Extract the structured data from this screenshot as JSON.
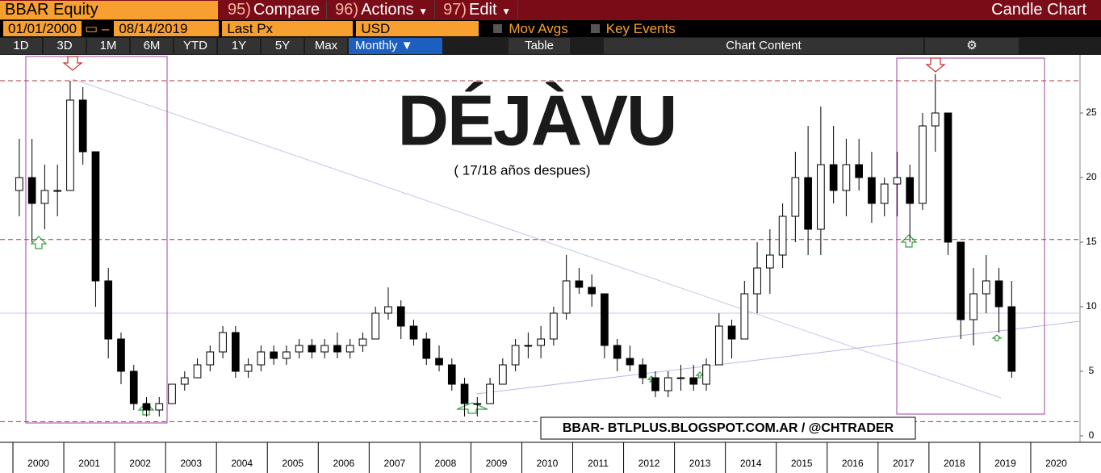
{
  "header": {
    "ticker": "BBAR Equity",
    "menu": [
      {
        "num": "95)",
        "label": "Compare"
      },
      {
        "num": "96)",
        "label": "Actions"
      },
      {
        "num": "97)",
        "label": "Edit"
      }
    ],
    "chart_kind": "Candle Chart",
    "start_date": "01/01/2000",
    "end_date": "08/14/2019",
    "field": "Last Px",
    "currency": "USD",
    "toggles": [
      "Mov Avgs",
      "Key Events"
    ],
    "ranges": [
      "1D",
      "3D",
      "1M",
      "6M",
      "YTD",
      "1Y",
      "5Y",
      "Max"
    ],
    "period": "Monthly",
    "table": "Table",
    "content": "Chart Content"
  },
  "chart_data": {
    "type": "candlestick",
    "title": "DÉJÀVU",
    "subtitle": "( 17/18 años despues)",
    "annotation": "BBAR- BTLPLUS.BLOGSPOT.COM.AR / @CHTRADER",
    "xlim": [
      2000,
      2021
    ],
    "xticks": [
      2000,
      2001,
      2002,
      2003,
      2004,
      2005,
      2006,
      2007,
      2008,
      2009,
      2010,
      2011,
      2012,
      2013,
      2014,
      2015,
      2016,
      2017,
      2018,
      2019,
      2020
    ],
    "ylim": [
      -0.5,
      29.5
    ],
    "yticks": [
      0,
      5,
      10,
      15,
      20,
      25
    ],
    "hlines": [
      27.5,
      15.2,
      1.1
    ],
    "hline_color": "#b0303a",
    "x": [
      2000.125,
      2000.375,
      2000.625,
      2000.875,
      2001.125,
      2001.375,
      2001.625,
      2001.875,
      2002.125,
      2002.375,
      2002.625,
      2002.875,
      2003.125,
      2003.375,
      2003.625,
      2003.875,
      2004.125,
      2004.375,
      2004.625,
      2004.875,
      2005.125,
      2005.375,
      2005.625,
      2005.875,
      2006.125,
      2006.375,
      2006.625,
      2006.875,
      2007.125,
      2007.375,
      2007.625,
      2007.875,
      2008.125,
      2008.375,
      2008.625,
      2008.875,
      2009.125,
      2009.375,
      2009.625,
      2009.875,
      2010.125,
      2010.375,
      2010.625,
      2010.875,
      2011.125,
      2011.375,
      2011.625,
      2011.875,
      2012.125,
      2012.375,
      2012.625,
      2012.875,
      2013.125,
      2013.375,
      2013.625,
      2013.875,
      2014.125,
      2014.375,
      2014.625,
      2014.875,
      2015.125,
      2015.375,
      2015.625,
      2015.875,
      2016.125,
      2016.375,
      2016.625,
      2016.875,
      2017.125,
      2017.375,
      2017.625,
      2017.875,
      2018.125,
      2018.375,
      2018.625,
      2018.875,
      2019.125,
      2019.375,
      2019.625
    ],
    "open": [
      19,
      20,
      18,
      19,
      19,
      26,
      22,
      12,
      7.5,
      5,
      2.5,
      2,
      2.5,
      4,
      4.5,
      5.5,
      6.5,
      8,
      5,
      5.5,
      6.5,
      6,
      6.5,
      7,
      6.5,
      7,
      6.5,
      7,
      7.5,
      9.5,
      10,
      8.5,
      7.5,
      6,
      5.5,
      4,
      2.5,
      2.5,
      4,
      5.5,
      7,
      7,
      7.5,
      9.5,
      12,
      11.5,
      11,
      7,
      6,
      5.5,
      4.5,
      3.5,
      4.5,
      4.5,
      4,
      5.5,
      8.5,
      7.5,
      11,
      13,
      14,
      17,
      20,
      16,
      21,
      19,
      21,
      20,
      18,
      19.5,
      20,
      18,
      24,
      25,
      15,
      9,
      11,
      12,
      10
    ],
    "high": [
      23,
      23,
      21,
      21,
      27.5,
      27,
      22,
      13,
      8,
      5.5,
      3,
      3,
      4,
      5,
      6,
      7,
      8.5,
      8.5,
      6,
      7,
      7,
      7,
      7.5,
      7.5,
      7.5,
      8,
      7.5,
      8,
      10,
      11.5,
      10.5,
      9,
      8,
      7,
      6,
      4.5,
      3,
      4.5,
      6,
      7.5,
      8,
      8.5,
      10,
      14,
      13,
      12.5,
      11,
      7.5,
      7,
      6,
      5,
      5,
      5.5,
      5.5,
      6,
      9.5,
      9,
      12,
      15,
      16,
      18,
      22,
      24,
      25.5,
      24,
      23,
      23,
      22,
      20,
      22,
      21,
      25,
      28,
      25,
      15,
      13,
      14,
      13,
      12
    ],
    "low": [
      17,
      15,
      16,
      17,
      19,
      21,
      10,
      6,
      4,
      2,
      1.5,
      1.5,
      2.5,
      3.5,
      4.5,
      5,
      6,
      4.5,
      4.5,
      5,
      5.5,
      5.5,
      6,
      6,
      6,
      6,
      6,
      6.5,
      7.5,
      9,
      7.5,
      7,
      5.5,
      5,
      3.5,
      1.5,
      1.5,
      2.5,
      4,
      5,
      6,
      6,
      7,
      9,
      11,
      10,
      6,
      5,
      5,
      4,
      3,
      3,
      3.5,
      3.5,
      3.5,
      5.5,
      6,
      7.5,
      9.5,
      11,
      13,
      15,
      14,
      14,
      18,
      17,
      19,
      16.5,
      17,
      17,
      15,
      17.5,
      22,
      14,
      7.5,
      7,
      9.5,
      8,
      4.5
    ],
    "close": [
      20,
      18,
      19,
      19,
      26,
      22,
      12,
      7.5,
      5,
      2.5,
      2,
      2.5,
      4,
      4.5,
      5.5,
      6.5,
      8,
      5,
      5.5,
      6.5,
      6,
      6.5,
      7,
      6.5,
      7,
      6.5,
      7,
      7.5,
      9.5,
      10,
      8.5,
      7.5,
      6,
      5.5,
      4,
      2.5,
      2.5,
      4,
      5.5,
      7,
      7,
      7.5,
      9.5,
      12,
      11.5,
      11,
      7,
      6,
      5.5,
      4.5,
      3.5,
      4.5,
      4.5,
      4,
      5.5,
      8.5,
      7.5,
      11,
      13,
      14,
      17,
      20,
      16,
      21,
      19,
      21,
      20,
      18,
      19.5,
      20,
      18,
      24,
      25,
      15,
      9,
      11,
      12,
      10,
      5
    ]
  }
}
